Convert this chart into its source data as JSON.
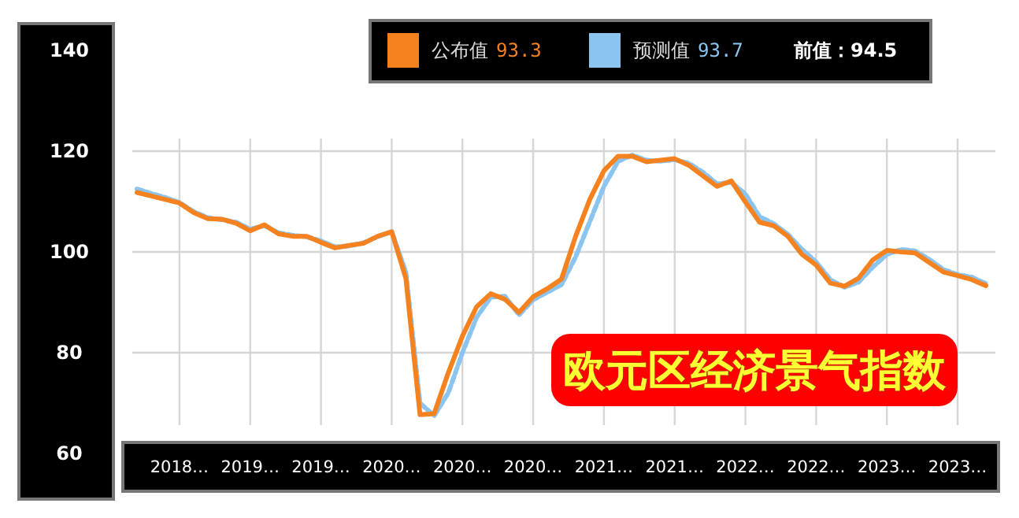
{
  "chart_data": {
    "type": "line",
    "title": "欧元区经济景气指数",
    "annotations": [
      "93.3",
      "93.7",
      "前值：94.5"
    ],
    "categories": [
      null,
      null,
      null,
      "2018…",
      null,
      null,
      null,
      null,
      "2019…",
      null,
      null,
      null,
      null,
      "2019…",
      null,
      null,
      null,
      null,
      "2020…",
      null,
      null,
      null,
      null,
      "2020…",
      null,
      null,
      null,
      null,
      "2020…",
      null,
      null,
      null,
      null,
      "2021…",
      null,
      null,
      null,
      null,
      "2021…",
      null,
      null,
      null,
      null,
      "2022…",
      null,
      null,
      null,
      null,
      "2022…",
      null,
      null,
      null,
      null,
      "2023…",
      null,
      null,
      null,
      null,
      "2023…",
      null,
      null
    ],
    "series": [
      {
        "name": "公布值",
        "color": "#f5821f",
        "line_style": "solid",
        "values": [
          111.8,
          111.1,
          110.4,
          109.7,
          107.8,
          106.6,
          106.5,
          105.7,
          104.2,
          105.4,
          103.6,
          103.1,
          103.1,
          101.9,
          100.8,
          101.3,
          101.7,
          103.1,
          104.0,
          94.8,
          67.7,
          67.9,
          76.0,
          83.3,
          89.1,
          91.7,
          90.6,
          88.0,
          91.1,
          92.7,
          94.6,
          103.1,
          110.4,
          116.1,
          119.0,
          119.0,
          117.9,
          118.2,
          118.5,
          117.2,
          115.1,
          113.0,
          114.1,
          109.9,
          105.9,
          105.2,
          103.1,
          99.5,
          97.4,
          93.8,
          93.2,
          94.8,
          98.4,
          100.3,
          100.0,
          99.8,
          97.9,
          96.0,
          95.3,
          94.5,
          93.3
        ]
      },
      {
        "name": "预测值",
        "color": "#8cc4f0",
        "line_style": "dashed",
        "values": [
          112.5,
          111.6,
          110.8,
          109.8,
          108.0,
          106.8,
          106.4,
          105.9,
          104.5,
          105.2,
          103.8,
          103.3,
          103.0,
          102.2,
          101.0,
          101.2,
          101.8,
          103.0,
          104.0,
          96.0,
          70.0,
          67.5,
          72.0,
          80.0,
          87.0,
          91.0,
          91.2,
          87.5,
          90.5,
          92.0,
          93.5,
          99.0,
          106.0,
          113.0,
          118.0,
          119.2,
          118.2,
          118.0,
          118.3,
          117.6,
          115.8,
          113.5,
          113.8,
          111.5,
          107.0,
          105.6,
          103.5,
          100.5,
          98.0,
          94.5,
          93.0,
          94.0,
          97.0,
          99.5,
          100.5,
          100.2,
          98.5,
          96.5,
          95.5,
          95.0,
          93.7
        ]
      }
    ],
    "ylim": [
      60,
      140
    ],
    "yticks": [
      60,
      80,
      100,
      120,
      140
    ],
    "grid": true,
    "legend": "top",
    "marker": "none"
  }
}
